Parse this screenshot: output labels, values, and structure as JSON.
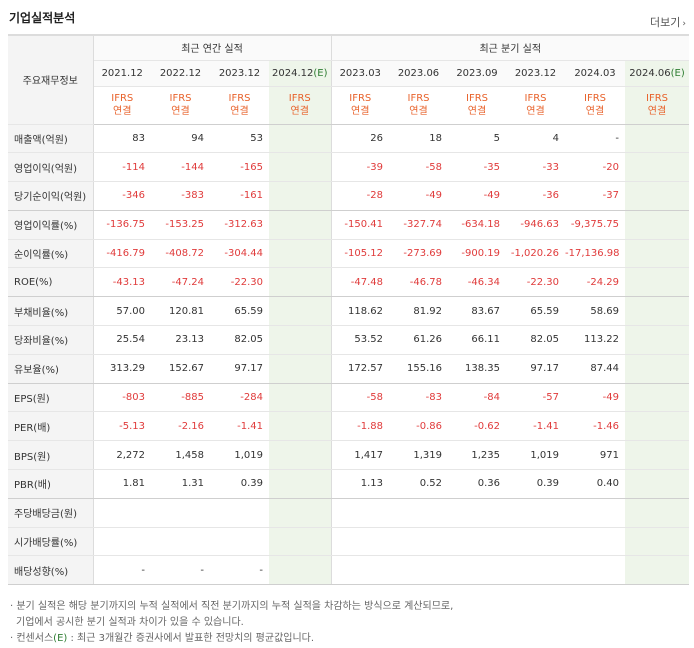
{
  "title": "기업실적분석",
  "more": "더보기",
  "header": {
    "row_label": "주요재무정보",
    "annual_group": "최근 연간 실적",
    "quarter_group": "최근 분기 실적",
    "periods": [
      "2021.12",
      "2022.12",
      "2023.12",
      "2024.12",
      "2023.03",
      "2023.06",
      "2023.09",
      "2023.12",
      "2024.03",
      "2024.06"
    ],
    "estimate_mark": "(E)",
    "ifrs_top": "IFRS",
    "ifrs_bottom": "연결"
  },
  "rows": [
    {
      "label": "매출액(억원)",
      "values": [
        "83",
        "94",
        "53",
        "",
        "26",
        "18",
        "5",
        "4",
        "-",
        ""
      ]
    },
    {
      "label": "영업이익(억원)",
      "values": [
        "-114",
        "-144",
        "-165",
        "",
        "-39",
        "-58",
        "-35",
        "-33",
        "-20",
        ""
      ]
    },
    {
      "label": "당기순이익(억원)",
      "values": [
        "-346",
        "-383",
        "-161",
        "",
        "-28",
        "-49",
        "-49",
        "-36",
        "-37",
        ""
      ]
    },
    {
      "label": "영업이익률(%)",
      "values": [
        "-136.75",
        "-153.25",
        "-312.63",
        "",
        "-150.41",
        "-327.74",
        "-634.18",
        "-946.63",
        "-9,375.75",
        ""
      ]
    },
    {
      "label": "순이익률(%)",
      "values": [
        "-416.79",
        "-408.72",
        "-304.44",
        "",
        "-105.12",
        "-273.69",
        "-900.19",
        "-1,020.26",
        "-17,136.98",
        ""
      ]
    },
    {
      "label": "ROE(%)",
      "values": [
        "-43.13",
        "-47.24",
        "-22.30",
        "",
        "-47.48",
        "-46.78",
        "-46.34",
        "-22.30",
        "-24.29",
        ""
      ]
    },
    {
      "label": "부채비율(%)",
      "values": [
        "57.00",
        "120.81",
        "65.59",
        "",
        "118.62",
        "81.92",
        "83.67",
        "65.59",
        "58.69",
        ""
      ]
    },
    {
      "label": "당좌비율(%)",
      "values": [
        "25.54",
        "23.13",
        "82.05",
        "",
        "53.52",
        "61.26",
        "66.11",
        "82.05",
        "113.22",
        ""
      ]
    },
    {
      "label": "유보율(%)",
      "values": [
        "313.29",
        "152.67",
        "97.17",
        "",
        "172.57",
        "155.16",
        "138.35",
        "97.17",
        "87.44",
        ""
      ]
    },
    {
      "label": "EPS(원)",
      "values": [
        "-803",
        "-885",
        "-284",
        "",
        "-58",
        "-83",
        "-84",
        "-57",
        "-49",
        ""
      ]
    },
    {
      "label": "PER(배)",
      "values": [
        "-5.13",
        "-2.16",
        "-1.41",
        "",
        "-1.88",
        "-0.86",
        "-0.62",
        "-1.41",
        "-1.46",
        ""
      ]
    },
    {
      "label": "BPS(원)",
      "values": [
        "2,272",
        "1,458",
        "1,019",
        "",
        "1,417",
        "1,319",
        "1,235",
        "1,019",
        "971",
        ""
      ]
    },
    {
      "label": "PBR(배)",
      "values": [
        "1.81",
        "1.31",
        "0.39",
        "",
        "1.13",
        "0.52",
        "0.36",
        "0.39",
        "0.40",
        ""
      ]
    },
    {
      "label": "주당배당금(원)",
      "values": [
        "",
        "",
        "",
        "",
        "",
        "",
        "",
        "",
        "",
        ""
      ]
    },
    {
      "label": "시가배당률(%)",
      "values": [
        "",
        "",
        "",
        "",
        "",
        "",
        "",
        "",
        "",
        ""
      ]
    },
    {
      "label": "배당성향(%)",
      "values": [
        "-",
        "-",
        "-",
        "",
        "",
        "",
        "",
        "",
        "",
        ""
      ]
    }
  ],
  "notes": {
    "line1": "· 분기 실적은 해당 분기까지의 누적 실적에서 직전 분기까지의 누적 실적을 차감하는 방식으로 계산되므로,",
    "line2": "기업에서 공시한 분기 실적과 차이가 있을 수 있습니다.",
    "line3_prefix": "· 컨센서스",
    "line3_mark": "(E)",
    "line3_suffix": " : 최근 3개월간 증권사에서 발표한 전망치의 평균값입니다."
  },
  "colors": {
    "negative": "#e03b3b",
    "ifrs": "#e8622b",
    "estimate": "#2e7d32",
    "estimate_bg": "#eef5ea"
  }
}
